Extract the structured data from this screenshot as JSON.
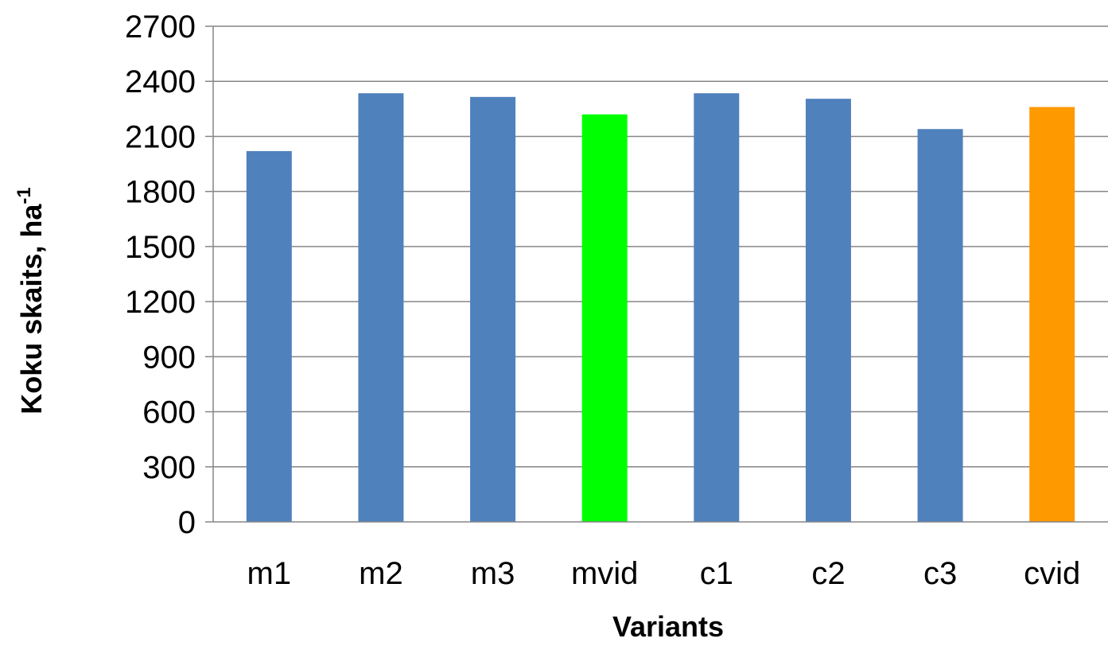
{
  "chart_data": {
    "type": "bar",
    "categories": [
      "m1",
      "m2",
      "m3",
      "mvid",
      "c1",
      "c2",
      "c3",
      "cvid"
    ],
    "values": [
      2020,
      2335,
      2315,
      2220,
      2335,
      2305,
      2140,
      2260
    ],
    "colors": [
      "#4F81BD",
      "#4F81BD",
      "#4F81BD",
      "#00FF00",
      "#4F81BD",
      "#4F81BD",
      "#4F81BD",
      "#FF9900"
    ],
    "xlabel": "Variants",
    "ylabel": "Koku skaits, ha",
    "ylabel_superscript": "-1",
    "yticks": [
      "0",
      "300",
      "600",
      "900",
      "1200",
      "1500",
      "1800",
      "2100",
      "2400",
      "2700"
    ],
    "ylim": [
      0,
      2700
    ],
    "grid": true,
    "legend": "none"
  }
}
